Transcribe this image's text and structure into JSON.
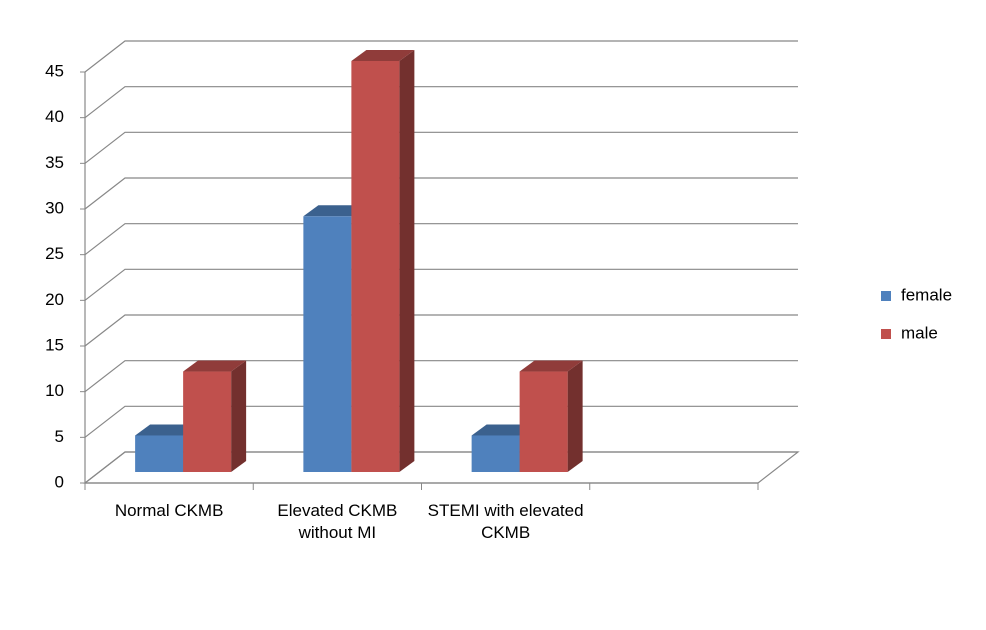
{
  "chart_data": {
    "type": "bar3d",
    "categories": [
      "Normal CKMB",
      "Elevated CKMB without MI",
      "STEMI with elevated CKMB",
      null
    ],
    "series": [
      {
        "name": "female",
        "color": "#4f81bd",
        "values": [
          4,
          28,
          4,
          null
        ]
      },
      {
        "name": "male",
        "color": "#c0504d",
        "values": [
          11,
          45,
          11,
          null
        ]
      }
    ],
    "ylim": [
      0,
      45
    ],
    "yticks": [
      0,
      5,
      10,
      15,
      20,
      25,
      30,
      35,
      40,
      45
    ],
    "grid": true,
    "legend": "right"
  }
}
